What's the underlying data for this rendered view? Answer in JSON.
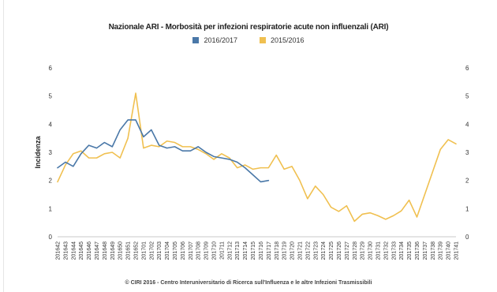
{
  "chart_data": {
    "type": "line",
    "title": "Nazionale ARI - Morbosità per infezioni respiratorie acute non influenzali (ARI)",
    "ylabel": "Incidenza",
    "xlabel": "",
    "ylim": [
      0,
      6
    ],
    "y_ticks": [
      "0",
      "1",
      "2",
      "3",
      "4",
      "5",
      "6"
    ],
    "legend_position": "top-center",
    "grid": false,
    "categories": [
      "201642",
      "201643",
      "201644",
      "201645",
      "201646",
      "201647",
      "201648",
      "201649",
      "201650",
      "201651",
      "201652",
      "201701",
      "201702",
      "201703",
      "201704",
      "201705",
      "201706",
      "201707",
      "201708",
      "201709",
      "201710",
      "201711",
      "201712",
      "201713",
      "201714",
      "201715",
      "201716",
      "201717",
      "201718",
      "201719",
      "201720",
      "201721",
      "201722",
      "201723",
      "201724",
      "201725",
      "201726",
      "201727",
      "201728",
      "201729",
      "201730",
      "201731",
      "201732",
      "201733",
      "201734",
      "201735",
      "201736",
      "201737",
      "201738",
      "201739",
      "201740",
      "201741"
    ],
    "series": [
      {
        "name": "2016/2017",
        "color": "#4a78a8",
        "values": [
          2.45,
          2.65,
          2.5,
          2.95,
          3.25,
          3.15,
          3.35,
          3.2,
          3.8,
          4.15,
          4.15,
          3.55,
          3.8,
          3.25,
          3.15,
          3.2,
          3.05,
          3.05,
          3.2,
          3.0,
          2.85,
          2.8,
          2.75,
          2.65,
          2.45,
          2.2,
          1.95,
          2.0,
          null,
          null,
          null,
          null,
          null,
          null,
          null,
          null,
          null,
          null,
          null,
          null,
          null,
          null,
          null,
          null,
          null,
          null,
          null,
          null,
          null,
          null,
          null,
          null
        ]
      },
      {
        "name": "2015/2016",
        "color": "#f0c050",
        "values": [
          1.95,
          2.55,
          2.95,
          3.05,
          2.8,
          2.8,
          2.95,
          3.0,
          2.8,
          3.5,
          5.1,
          3.15,
          3.25,
          3.2,
          3.4,
          3.35,
          3.2,
          3.2,
          3.1,
          2.95,
          2.75,
          2.95,
          2.8,
          2.45,
          2.55,
          2.4,
          2.45,
          2.45,
          2.9,
          2.4,
          2.5,
          2.0,
          1.35,
          1.8,
          1.5,
          1.05,
          0.9,
          1.1,
          0.55,
          0.8,
          0.85,
          0.75,
          0.62,
          0.75,
          0.92,
          1.3,
          0.7,
          1.5,
          2.3,
          3.1,
          3.45,
          3.3
        ]
      }
    ]
  },
  "footer": "© CIRI 2016 - Centro Interuniversitario di Ricerca sull'Influenza e le altre Infezioni Trasmissibili"
}
